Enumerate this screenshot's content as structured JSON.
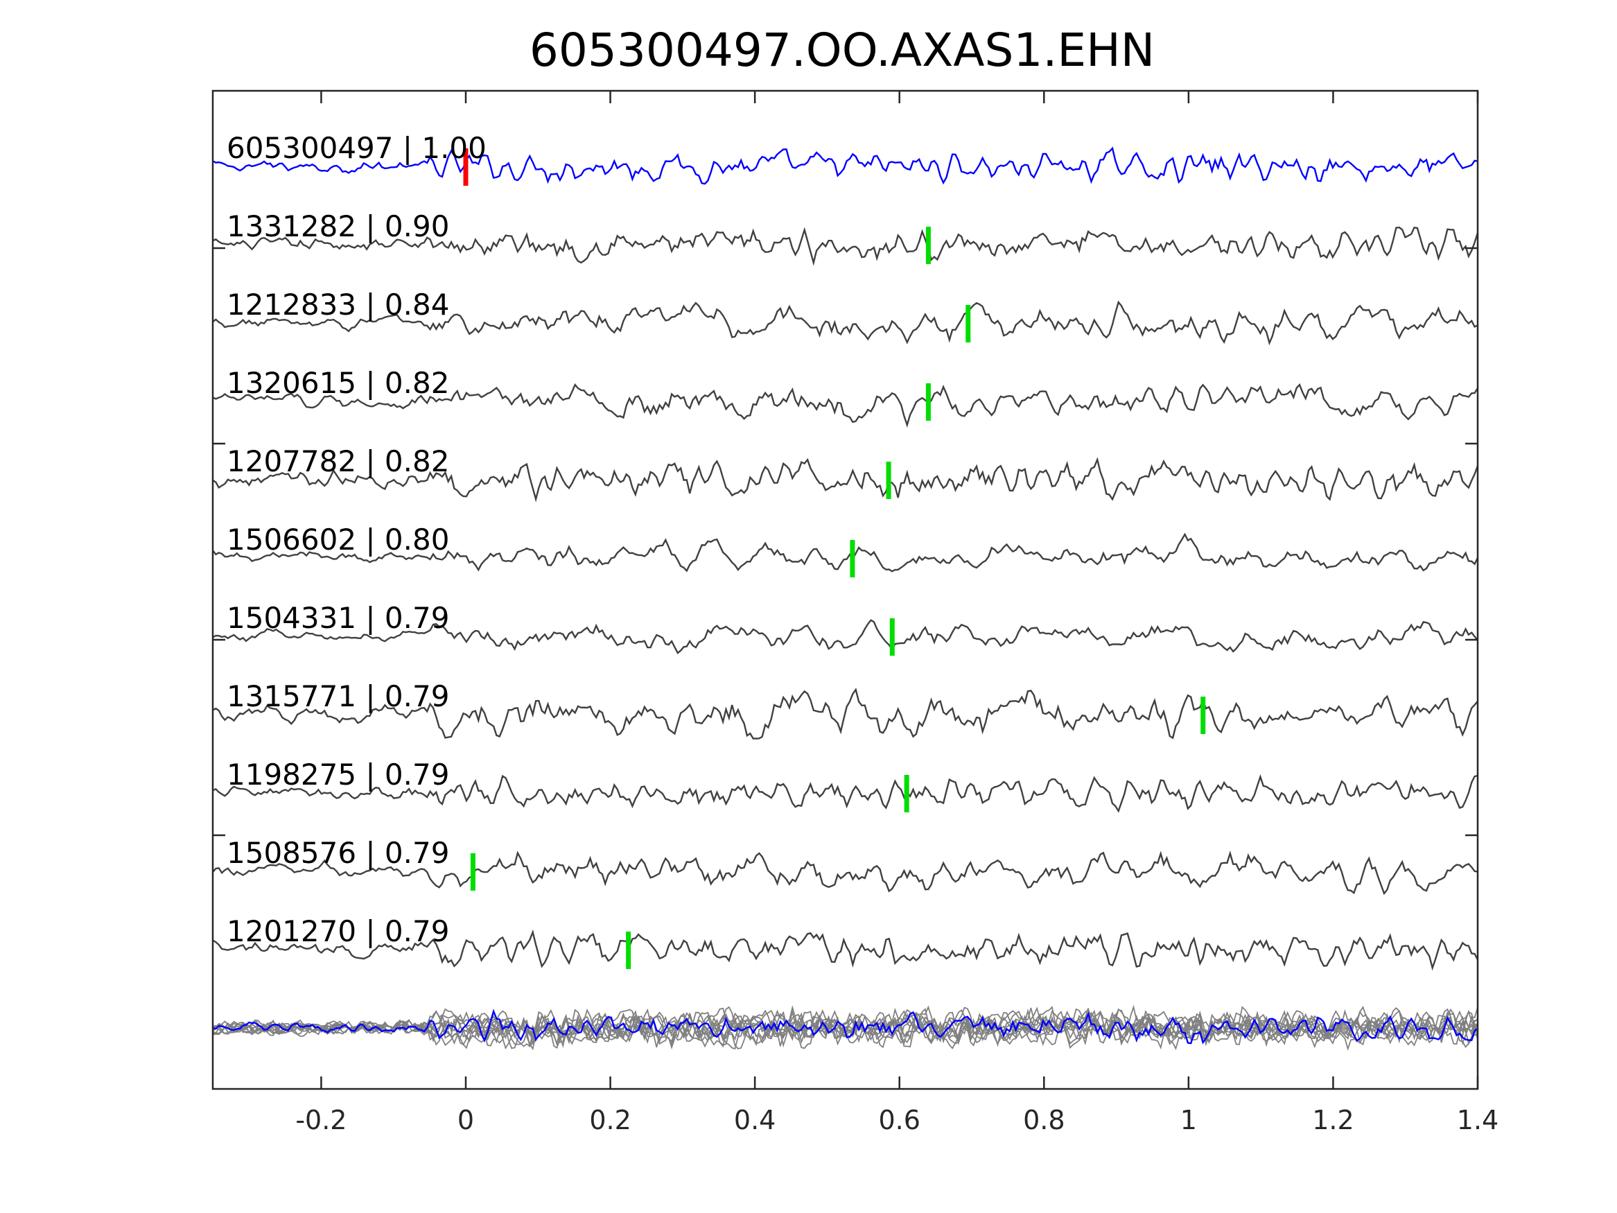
{
  "chart_data": {
    "type": "line",
    "title": "605300497.OO.AXAS1.EHN",
    "xlabel": "",
    "ylabel": "",
    "xlim": [
      -0.35,
      1.4
    ],
    "xticks": [
      -0.2,
      0,
      0.2,
      0.4,
      0.6,
      0.8,
      1,
      1.2,
      1.4
    ],
    "xtick_labels": [
      "-0.2",
      "0",
      "0.2",
      "0.4",
      "0.6",
      "0.8",
      "1",
      "1.2",
      "1.4"
    ],
    "grid": false,
    "legend": "none",
    "colors": {
      "template": "#0000ff",
      "match": "#404040",
      "stack": "#808080",
      "pick_template": "#ff0000",
      "pick_match": "#00dd00"
    },
    "series": [
      {
        "label": "605300497 | 1.00",
        "pick": 0.0,
        "role": "template"
      },
      {
        "label": "1331282 | 0.90",
        "pick": 0.64,
        "role": "match"
      },
      {
        "label": "1212833 | 0.84",
        "pick": 0.695,
        "role": "match"
      },
      {
        "label": "1320615 | 0.82",
        "pick": 0.64,
        "role": "match"
      },
      {
        "label": "1207782 | 0.82",
        "pick": 0.585,
        "role": "match"
      },
      {
        "label": "1506602 | 0.80",
        "pick": 0.535,
        "role": "match"
      },
      {
        "label": "1504331 | 0.79",
        "pick": 0.59,
        "role": "match"
      },
      {
        "label": "1315771 | 0.79",
        "pick": 1.02,
        "role": "match"
      },
      {
        "label": "1198275 | 0.79",
        "pick": 0.61,
        "role": "match"
      },
      {
        "label": "1508576 | 0.79",
        "pick": 0.01,
        "role": "match"
      },
      {
        "label": "1201270 | 0.79",
        "pick": 0.225,
        "role": "match"
      }
    ]
  }
}
